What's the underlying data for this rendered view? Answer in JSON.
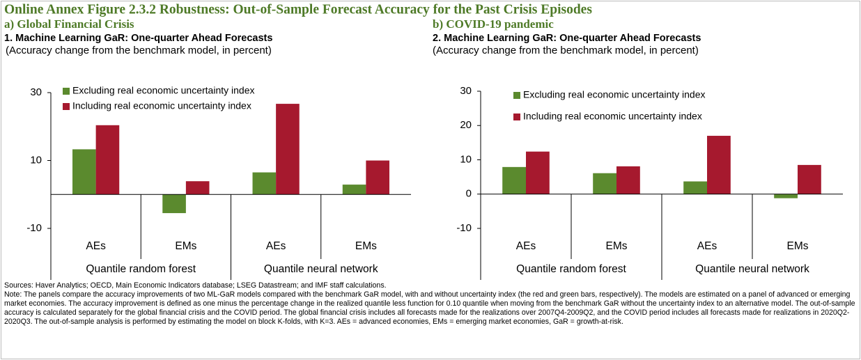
{
  "figure_title": "Online Annex Figure 2.3.2 Robustness: Out-of-Sample Forecast Accuracy for the Past Crisis Episodes",
  "chart_data": [
    {
      "type": "bar",
      "panel": "a) Global Financial Crisis",
      "title": "1. Machine Learning GaR: One-quarter Ahead Forecasts",
      "subtitle": "(Accuracy change from the benchmark model, in percent)",
      "categories": [
        "AEs",
        "EMs",
        "AEs",
        "EMs"
      ],
      "groups": [
        "Quantile random forest",
        "Quantile neural network"
      ],
      "series": [
        {
          "name": "Excluding real economic uncertainty index",
          "color": "#5b8a2e",
          "values": [
            13.3,
            -5.5,
            6.5,
            2.9
          ]
        },
        {
          "name": "Including real economic uncertainty index",
          "color": "#a6192e",
          "values": [
            20.4,
            3.9,
            26.7,
            10.0
          ]
        }
      ],
      "ylim": [
        -10,
        30
      ],
      "yticks": [
        -10,
        10,
        30
      ]
    },
    {
      "type": "bar",
      "panel": "b) COVID-19 pandemic",
      "title": "2. Machine Learning GaR: One-quarter Ahead Forecasts",
      "subtitle": "(Accuracy change from the benchmark model, in percent)",
      "categories": [
        "AEs",
        "EMs",
        "AEs",
        "EMs"
      ],
      "groups": [
        "Quantile random forest",
        "Quantile neural network"
      ],
      "series": [
        {
          "name": "Excluding real economic uncertainty index",
          "color": "#5b8a2e",
          "values": [
            7.9,
            6.1,
            3.7,
            -1.2
          ]
        },
        {
          "name": "Including real economic uncertainty index",
          "color": "#a6192e",
          "values": [
            12.4,
            8.1,
            17.0,
            8.5
          ]
        }
      ],
      "ylim": [
        -10,
        30
      ],
      "yticks": [
        -10,
        0,
        10,
        20,
        30
      ]
    }
  ],
  "sources": "Sources: Haver Analytics; OECD, Main Economic Indicators database; LSEG Datastream; and IMF staff calculations.",
  "note": "Note: The panels compare the accuracy improvements of two ML-GaR models compared with the benchmark GaR model, with and without uncertainty index (the red and green bars, respectively). The models are estimated on a panel of advanced or emerging market economies. The accuracy improvement is defined as one minus the percentage change in the realized quantile less function for 0.10 quantile when moving from the benchmark GaR without the uncertainty index to an alternative model. The out-of-sample accuracy is calculated separately for the global financial crisis and the COVID period. The global financial crisis includes all forecasts made for the realizations over 2007Q4-2009Q2, and the COVID period includes all forecasts made for realizations in 2020Q2-2020Q3. The out-of-sample analysis is performed by estimating the model on block K-folds, with K=3. AEs = advanced economies, EMs = emerging market economies, GaR = growth-at-risk."
}
